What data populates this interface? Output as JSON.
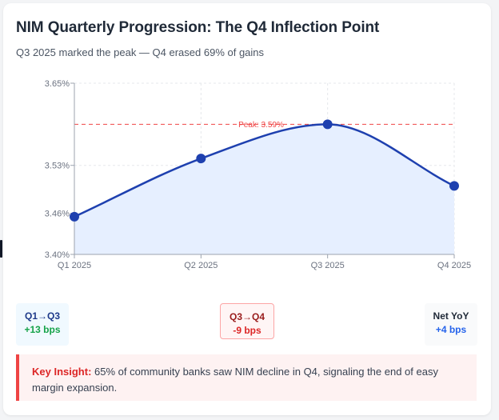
{
  "title": "NIM Quarterly Progression: The Q4 Inflection Point",
  "subtitle": "Q3 2025 marked the peak — Q4 erased 69% of gains",
  "chart_data": {
    "type": "line",
    "categories": [
      "Q1 2025",
      "Q2 2025",
      "Q3 2025",
      "Q4 2025"
    ],
    "values": [
      3.455,
      3.54,
      3.59,
      3.5
    ],
    "ylim": [
      3.4,
      3.65
    ],
    "yticks": [
      3.4,
      3.46,
      3.53,
      3.65
    ],
    "ytick_labels": [
      "3.40%",
      "3.46%",
      "3.53%",
      "3.65%"
    ],
    "reference_line": {
      "value": 3.59,
      "label": "Peak: 3.59%"
    },
    "area_fill": true,
    "grid": true,
    "line_color": "#1e40af",
    "fill_color": "#e6efff",
    "reference_color": "#ef4444"
  },
  "stats": [
    {
      "label": "Q1→Q3",
      "value": "+13 bps"
    },
    {
      "label": "Q3→Q4",
      "value": "-9 bps"
    },
    {
      "label": "Net YoY",
      "value": "+4 bps"
    }
  ],
  "insight": {
    "key": "Key Insight:",
    "text": " 65% of community banks saw NIM decline in Q4, signaling the end of easy margin expansion."
  }
}
